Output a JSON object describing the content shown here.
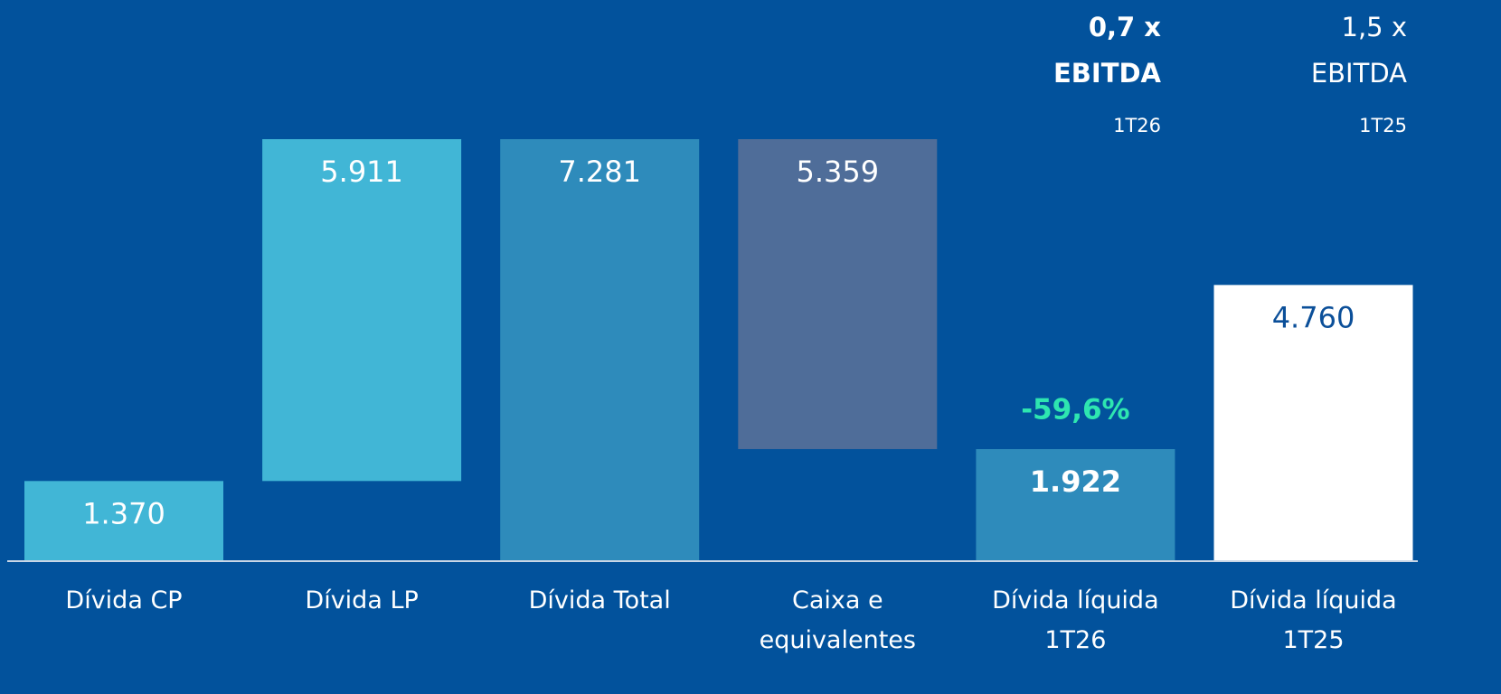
{
  "chart_data": {
    "type": "waterfall",
    "categories": [
      "Dívida CP",
      "Dívida LP",
      "Dívida Total",
      "Caixa e equivalentes",
      "Dívida líquida 1T26",
      "Dívida líquida 1T25"
    ],
    "values": [
      1370,
      5911,
      7281,
      5359,
      1922,
      4760
    ],
    "value_labels": [
      "1.370",
      "5.911",
      "7.281",
      "5.359",
      "1.922",
      "4.760"
    ],
    "measure": [
      "increase",
      "increase",
      "total",
      "decrease",
      "total",
      "total"
    ],
    "colors": [
      "#41b6d6",
      "#41b6d6",
      "#2e8bbb",
      "#4f6d99",
      "#2e8bbb",
      "#ffffff"
    ],
    "label_colors": [
      "#ffffff",
      "#ffffff",
      "#ffffff",
      "#ffffff",
      "#ffffff",
      "#0b4f99"
    ],
    "label_bold": [
      false,
      false,
      false,
      false,
      true,
      false
    ],
    "change_label": "-59,6%",
    "annotations": [
      {
        "lines": [
          "0,7 x",
          "EBITDA",
          "1T26"
        ],
        "bold": true
      },
      {
        "lines": [
          "1,5 x",
          "EBITDA",
          "1T25"
        ],
        "bold": false
      }
    ]
  }
}
